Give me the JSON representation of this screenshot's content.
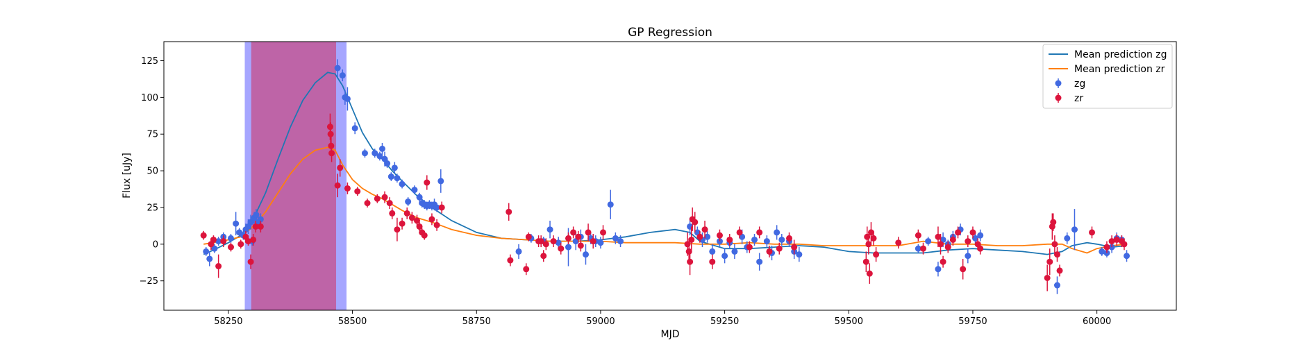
{
  "chart_data": {
    "type": "scatter",
    "title": "GP Regression",
    "xlabel": "MJD",
    "ylabel": "Flux [uJy]",
    "xlim": [
      58120,
      60160
    ],
    "ylim": [
      -45,
      138
    ],
    "xticks": [
      58250,
      58500,
      58750,
      59000,
      59250,
      59500,
      59750,
      60000
    ],
    "yticks": [
      -25,
      0,
      25,
      50,
      75,
      100,
      125
    ],
    "legend_position": "top-right",
    "grid": false,
    "shaded_regions": [
      {
        "x0": 58283,
        "x1": 58488,
        "color": "#0000ff",
        "opacity": 0.35
      },
      {
        "x0": 58296,
        "x1": 58467,
        "color": "#dc143c",
        "opacity": 0.45
      }
    ],
    "lines": [
      {
        "name": "Mean prediction zg",
        "color": "#1f77b4",
        "x": [
          58200,
          58220,
          58250,
          58275,
          58300,
          58325,
          58350,
          58375,
          58400,
          58425,
          58450,
          58465,
          58480,
          58500,
          58520,
          58540,
          58560,
          58580,
          58600,
          58630,
          58660,
          58700,
          58750,
          58800,
          58850,
          58900,
          58950,
          59000,
          59050,
          59100,
          59150,
          59180,
          59200,
          59250,
          59300,
          59350,
          59400,
          59450,
          59500,
          59550,
          59600,
          59650,
          59700,
          59750,
          59800,
          59850,
          59900,
          59930,
          59950,
          59980,
          60000,
          60030,
          60060
        ],
        "y": [
          -7,
          -4,
          1,
          6,
          17,
          35,
          58,
          80,
          98,
          110,
          117,
          116,
          108,
          92,
          76,
          65,
          58,
          50,
          43,
          33,
          25,
          16,
          8,
          4,
          3,
          2,
          2,
          3,
          5,
          8,
          10,
          8,
          2,
          -3,
          -3,
          -2,
          -1,
          -2,
          -5,
          -6,
          -6,
          -6,
          -4,
          -3,
          -4,
          -5,
          -7,
          -5,
          -1,
          1,
          0,
          -2,
          -1
        ]
      },
      {
        "name": "Mean prediction zr",
        "color": "#ff7f0e",
        "x": [
          58200,
          58220,
          58250,
          58275,
          58300,
          58325,
          58350,
          58375,
          58400,
          58425,
          58450,
          58465,
          58480,
          58500,
          58520,
          58540,
          58560,
          58580,
          58600,
          58630,
          58660,
          58700,
          58750,
          58800,
          58850,
          58900,
          58950,
          59000,
          59050,
          59100,
          59150,
          59200,
          59250,
          59300,
          59350,
          59400,
          59450,
          59500,
          59550,
          59600,
          59650,
          59700,
          59750,
          59800,
          59850,
          59900,
          59930,
          59950,
          59980,
          60000,
          60030,
          60060
        ],
        "y": [
          0,
          1,
          3,
          5,
          12,
          22,
          35,
          48,
          58,
          64,
          66,
          64,
          54,
          44,
          38,
          34,
          31,
          27,
          23,
          18,
          15,
          10,
          6,
          4,
          3,
          2,
          2,
          2,
          1,
          1,
          1,
          0,
          0,
          1,
          0,
          0,
          -1,
          -1,
          -1,
          -1,
          2,
          0,
          0,
          -1,
          -1,
          0,
          0,
          -3,
          -6,
          -3,
          -1,
          0
        ]
      }
    ],
    "series": [
      {
        "name": "zg",
        "color": "#4169e1",
        "x": [
          58205,
          58212,
          58222,
          58230,
          58240,
          58255,
          58265,
          58272,
          58280,
          58285,
          58290,
          58295,
          58298,
          58302,
          58306,
          58310,
          58315,
          58470,
          58480,
          58485,
          58490,
          58505,
          58525,
          58545,
          58555,
          58560,
          58565,
          58570,
          58578,
          58585,
          58590,
          58600,
          58612,
          58625,
          58635,
          58640,
          58645,
          58650,
          58655,
          58660,
          58665,
          58670,
          58678,
          58835,
          58860,
          58885,
          58898,
          58915,
          58935,
          58950,
          58960,
          58970,
          58980,
          58990,
          59000,
          59020,
          59030,
          59040,
          59180,
          59195,
          59205,
          59215,
          59225,
          59240,
          59250,
          59260,
          59270,
          59285,
          59295,
          59310,
          59320,
          59335,
          59345,
          59355,
          59365,
          59380,
          59390,
          59400,
          59640,
          59660,
          59680,
          59690,
          59700,
          59710,
          59725,
          59740,
          59755,
          59765,
          59920,
          59940,
          59955,
          60010,
          60020,
          60030,
          60040,
          60050,
          60060
        ],
        "y": [
          -5,
          -10,
          -3,
          2,
          5,
          4,
          14,
          8,
          6,
          10,
          12,
          15,
          2,
          18,
          20,
          15,
          17,
          120,
          115,
          100,
          99,
          79,
          62,
          62,
          60,
          65,
          58,
          55,
          46,
          52,
          45,
          41,
          29,
          37,
          32,
          28,
          27,
          26,
          27,
          26,
          27,
          25,
          43,
          -5,
          4,
          2,
          10,
          1,
          -2,
          2,
          5,
          -7,
          4,
          2,
          1,
          27,
          4,
          2,
          12,
          8,
          3,
          5,
          -5,
          2,
          -8,
          1,
          -5,
          5,
          -2,
          3,
          -12,
          2,
          -6,
          8,
          3,
          2,
          -5,
          -7,
          -3,
          2,
          -17,
          3,
          0,
          5,
          10,
          -8,
          4,
          6,
          -28,
          4,
          10,
          -5,
          -6,
          -2,
          4,
          3,
          -8
        ],
        "errors": [
          3,
          5,
          3,
          3,
          3,
          3,
          8,
          3,
          3,
          4,
          5,
          5,
          3,
          4,
          4,
          4,
          4,
          6,
          4,
          5,
          8,
          4,
          3,
          3,
          3,
          4,
          5,
          3,
          3,
          4,
          3,
          3,
          3,
          3,
          3,
          3,
          3,
          3,
          3,
          3,
          4,
          3,
          8,
          5,
          3,
          3,
          6,
          4,
          13,
          6,
          5,
          7,
          4,
          4,
          4,
          10,
          4,
          4,
          6,
          4,
          5,
          4,
          5,
          4,
          5,
          4,
          5,
          5,
          4,
          4,
          6,
          4,
          5,
          5,
          4,
          4,
          5,
          5,
          3,
          3,
          5,
          5,
          3,
          4,
          4,
          5,
          4,
          4,
          6,
          4,
          14,
          3,
          3,
          4,
          4,
          3,
          4
        ]
      },
      {
        "name": "zr",
        "color": "#dc143c",
        "x": [
          58200,
          58215,
          58220,
          58230,
          58240,
          58255,
          58275,
          58285,
          58290,
          58295,
          58300,
          58305,
          58315,
          58455,
          58456,
          58457,
          58458,
          58470,
          58475,
          58490,
          58510,
          58530,
          58550,
          58565,
          58575,
          58580,
          58590,
          58600,
          58610,
          58620,
          58630,
          58635,
          58640,
          58645,
          58650,
          58660,
          58670,
          58680,
          58815,
          58818,
          58850,
          58855,
          58875,
          58880,
          58885,
          58890,
          58905,
          58920,
          58935,
          58945,
          58955,
          58960,
          58975,
          58985,
          59005,
          59175,
          59178,
          59180,
          59183,
          59185,
          59190,
          59200,
          59210,
          59225,
          59240,
          59260,
          59280,
          59300,
          59320,
          59340,
          59360,
          59380,
          59390,
          59535,
          59537,
          59540,
          59542,
          59545,
          59550,
          59555,
          59600,
          59640,
          59650,
          59680,
          59685,
          59690,
          59700,
          59710,
          59720,
          59730,
          59740,
          59750,
          59760,
          59765,
          59900,
          59905,
          59910,
          59912,
          59915,
          59920,
          59925,
          59990,
          60020,
          60030,
          60040,
          60050,
          60055
        ],
        "y": [
          6,
          0,
          3,
          -15,
          2,
          -2,
          0,
          5,
          2,
          -12,
          3,
          12,
          12,
          80,
          75,
          67,
          62,
          40,
          52,
          38,
          36,
          28,
          31,
          32,
          28,
          21,
          10,
          14,
          21,
          18,
          16,
          12,
          8,
          6,
          42,
          17,
          13,
          25,
          22,
          -11,
          -17,
          5,
          2,
          2,
          -8,
          0,
          2,
          -3,
          4,
          8,
          5,
          -1,
          8,
          2,
          8,
          0,
          -5,
          -12,
          3,
          17,
          15,
          5,
          10,
          -12,
          6,
          3,
          8,
          -2,
          8,
          -5,
          -3,
          4,
          -2,
          -12,
          5,
          0,
          -20,
          8,
          4,
          -7,
          1,
          6,
          -3,
          5,
          0,
          -12,
          -2,
          3,
          8,
          -17,
          2,
          8,
          0,
          -3,
          -23,
          -12,
          12,
          15,
          0,
          -7,
          -18,
          8,
          -2,
          2,
          3,
          2,
          0
        ],
        "errors": [
          3,
          4,
          3,
          8,
          4,
          3,
          3,
          4,
          3,
          5,
          4,
          4,
          4,
          9,
          8,
          6,
          6,
          8,
          6,
          4,
          3,
          3,
          3,
          4,
          4,
          4,
          8,
          4,
          4,
          4,
          4,
          3,
          3,
          3,
          5,
          4,
          4,
          4,
          6,
          4,
          4,
          3,
          4,
          4,
          4,
          4,
          4,
          4,
          4,
          4,
          4,
          4,
          6,
          5,
          5,
          8,
          9,
          9,
          9,
          8,
          7,
          4,
          6,
          5,
          4,
          4,
          4,
          4,
          4,
          4,
          4,
          4,
          5,
          7,
          7,
          7,
          7,
          7,
          5,
          5,
          4,
          4,
          4,
          7,
          7,
          4,
          4,
          4,
          4,
          7,
          4,
          4,
          4,
          4,
          9,
          9,
          9,
          6,
          6,
          5,
          4,
          4,
          4,
          4,
          4,
          4,
          4
        ]
      }
    ]
  }
}
